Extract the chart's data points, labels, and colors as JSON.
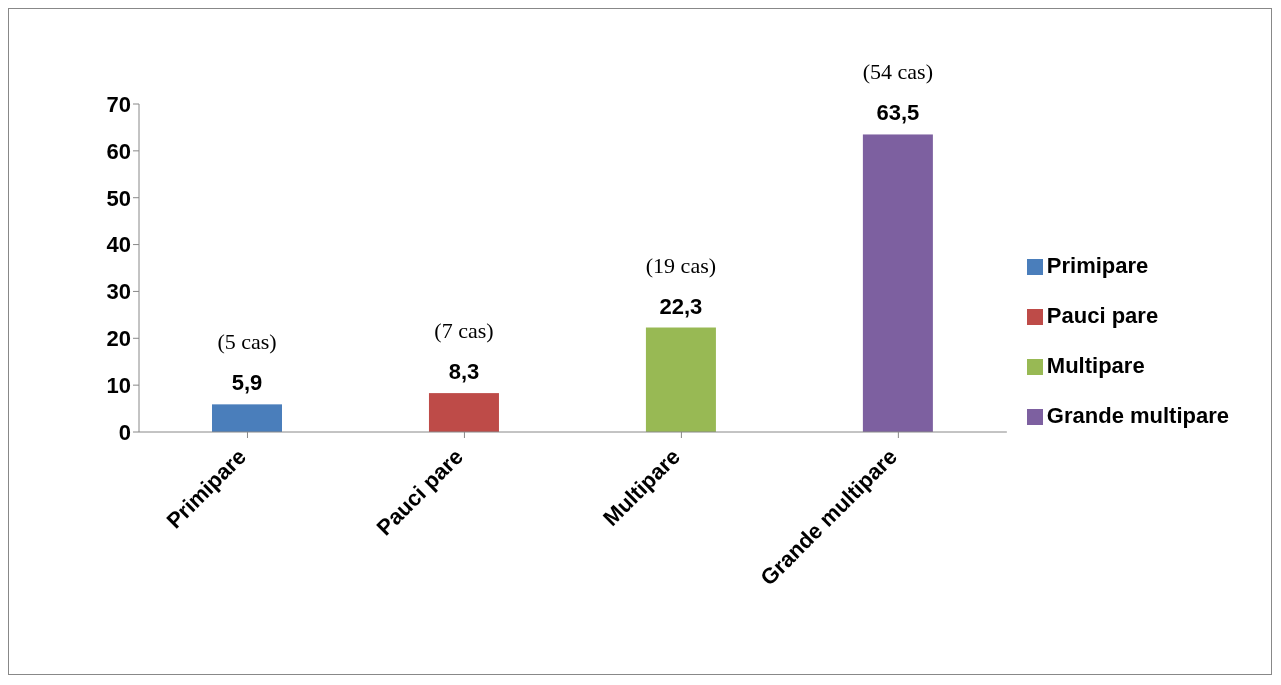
{
  "chart_data": {
    "type": "bar",
    "stacked": true,
    "categories": [
      "Primipare",
      "Pauci pare",
      "Multipare",
      "Grande multipare"
    ],
    "series": [
      {
        "name": "Primipare",
        "color": "#4a7ebb",
        "values": [
          5.9,
          null,
          null,
          null
        ],
        "value_labels": [
          "5,9",
          null,
          null,
          null
        ]
      },
      {
        "name": "Pauci pare",
        "color": "#be4b48",
        "values": [
          null,
          8.3,
          null,
          null
        ],
        "value_labels": [
          null,
          "8,3",
          null,
          null
        ]
      },
      {
        "name": "Multipare",
        "color": "#98b954",
        "values": [
          null,
          null,
          22.3,
          null
        ],
        "value_labels": [
          null,
          null,
          "22,3",
          null
        ]
      },
      {
        "name": "Grande multipare",
        "color": "#7d60a0",
        "values": [
          null,
          null,
          null,
          63.5
        ],
        "value_labels": [
          null,
          null,
          null,
          "63,5"
        ]
      }
    ],
    "annotations": [
      "(5 cas)",
      "(7 cas)",
      "(19 cas)",
      "(54 cas)"
    ],
    "ylim": [
      0,
      70
    ],
    "yticks": [
      0,
      10,
      20,
      30,
      40,
      50,
      60,
      70
    ],
    "grid": false,
    "legend": "right"
  }
}
